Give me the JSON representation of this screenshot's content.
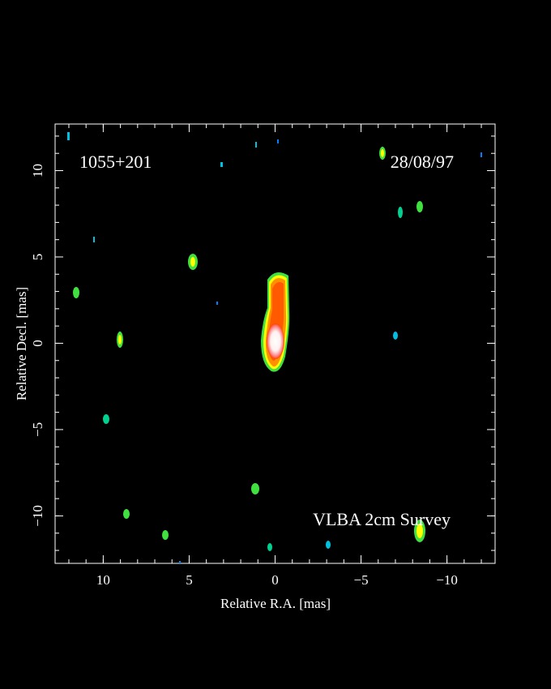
{
  "chart_data": {
    "type": "image",
    "source_label": "1055+201",
    "date_label": "28/08/97",
    "survey_label": "VLBA 2cm Survey",
    "xlabel": "Relative R.A. [mas]",
    "ylabel": "Relative Decl. [mas]",
    "xlim": [
      12.8,
      -12.8
    ],
    "ylim": [
      -12.75,
      12.7
    ],
    "xticks": [
      10,
      5,
      0,
      {
        "value": -5,
        "label": "−5"
      },
      {
        "value": -10,
        "label": "−10"
      }
    ],
    "yticks": [
      {
        "value": -10,
        "label": "−10"
      },
      {
        "value": -5,
        "label": "−5"
      },
      0,
      5,
      10
    ],
    "xminorticks": [
      12,
      11,
      10,
      9,
      8,
      7,
      6,
      5,
      4,
      3,
      2,
      1,
      0,
      -1,
      -2,
      -3,
      -4,
      -5,
      -6,
      -7,
      -8,
      -9,
      -10,
      -11,
      -12
    ],
    "yminorticks": [
      -12,
      -11,
      -10,
      -9,
      -8,
      -7,
      -6,
      -5,
      -4,
      -3,
      -2,
      -1,
      0,
      1,
      2,
      3,
      4,
      5,
      6,
      7,
      8,
      9,
      10,
      11,
      12
    ]
  }
}
